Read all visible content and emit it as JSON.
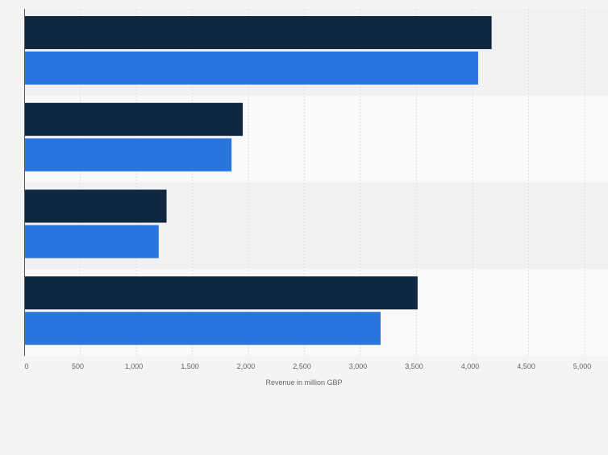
{
  "chart_data": {
    "type": "bar",
    "orientation": "horizontal",
    "categories": [
      "",
      "",
      "",
      ""
    ],
    "series": [
      {
        "values": [
          4170,
          1950,
          1270,
          3510
        ]
      },
      {
        "values": [
          4050,
          1850,
          1200,
          3180
        ]
      }
    ],
    "xlabel": "Revenue in million GBP",
    "xlim": [
      0,
      5000
    ],
    "xticks": [
      0,
      500,
      1000,
      1500,
      2000,
      2500,
      3000,
      3500,
      4000,
      4500,
      5000
    ],
    "xtick_labels": [
      "0",
      "500",
      "1,000",
      "1,500",
      "2,000",
      "2,500",
      "3,000",
      "3,500",
      "4,000",
      "4,500",
      "5,000"
    ],
    "grid": "vertical",
    "legend": "none",
    "colors": {
      "series_1": "#0f2741",
      "series_2": "#2876dd",
      "band_dark": "#f1f1f1",
      "band_light": "#f9f9f9",
      "grid": "#dddddd"
    }
  }
}
